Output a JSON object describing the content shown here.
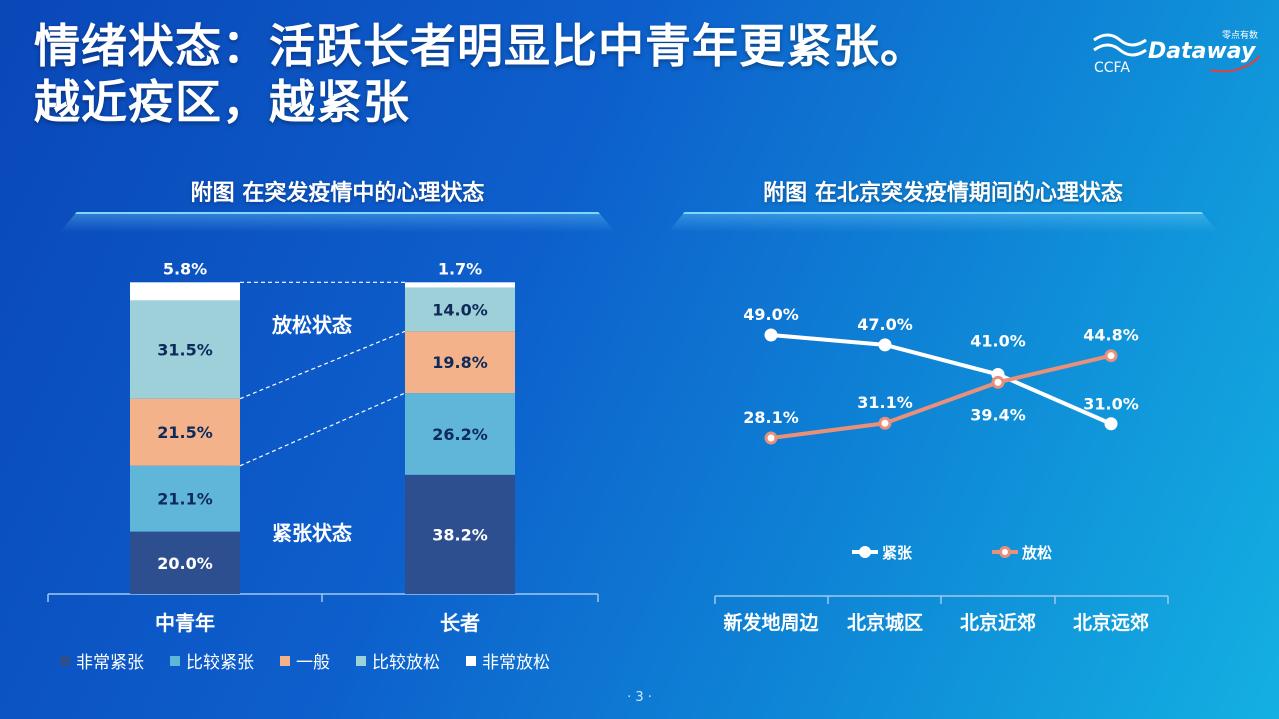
{
  "title": {
    "line1": "情绪状态：活跃长者明显比中青年更紧张。",
    "line2": "越近疫区，越紧张"
  },
  "logo": {
    "brand": "Dataway",
    "sub": "零点有数",
    "partner": "CCFA"
  },
  "colors": {
    "very_tense": "#2e4f8f",
    "tense": "#5fb6d8",
    "normal": "#f4b28a",
    "relaxed": "#9dd0d8",
    "very_relaxed": "#ffffff",
    "line_tense": "#ffffff",
    "line_relaxed": "#e8907a"
  },
  "chart_left": {
    "title": "附图  在突发疫情中的心理状态",
    "group_labels": {
      "relaxed": "放松状态",
      "tense": "紧张状态"
    },
    "legend": [
      "非常紧张",
      "比较紧张",
      "一般",
      "比较放松",
      "非常放松"
    ]
  },
  "chart_right": {
    "title": "附图  在北京突发疫情期间的心理状态",
    "legend": [
      "紧张",
      "放松"
    ]
  },
  "page_number": "· 3 ·",
  "chart_data": [
    {
      "type": "bar",
      "stacked": true,
      "title": "附图  在突发疫情中的心理状态",
      "categories": [
        "中青年",
        "长者"
      ],
      "series": [
        {
          "name": "非常紧张",
          "values": [
            20.0,
            38.2
          ],
          "labels": [
            "20.0%",
            "38.2%"
          ]
        },
        {
          "name": "比较紧张",
          "values": [
            21.1,
            26.2
          ],
          "labels": [
            "21.1%",
            "26.2%"
          ]
        },
        {
          "name": "一般",
          "values": [
            21.5,
            19.8
          ],
          "labels": [
            "21.5%",
            "19.8%"
          ]
        },
        {
          "name": "比较放松",
          "values": [
            31.5,
            14.0
          ],
          "labels": [
            "31.5%",
            "14.0%"
          ]
        },
        {
          "name": "非常放松",
          "values": [
            5.8,
            1.7
          ],
          "labels": [
            "5.8%",
            "1.7%"
          ]
        }
      ],
      "ylim": [
        0,
        100
      ],
      "legend_position": "bottom"
    },
    {
      "type": "line",
      "title": "附图  在北京突发疫情期间的心理状态",
      "categories": [
        "新发地周边",
        "北京城区",
        "北京近郊",
        "北京远郊"
      ],
      "series": [
        {
          "name": "紧张",
          "values": [
            49.0,
            47.0,
            41.0,
            31.0
          ],
          "labels": [
            "49.0%",
            "47.0%",
            "41.0%",
            "31.0%"
          ]
        },
        {
          "name": "放松",
          "values": [
            28.1,
            31.1,
            39.4,
            44.8
          ],
          "labels": [
            "28.1%",
            "31.1%",
            "39.4%",
            "44.8%"
          ]
        }
      ],
      "legend_position": "bottom"
    }
  ]
}
